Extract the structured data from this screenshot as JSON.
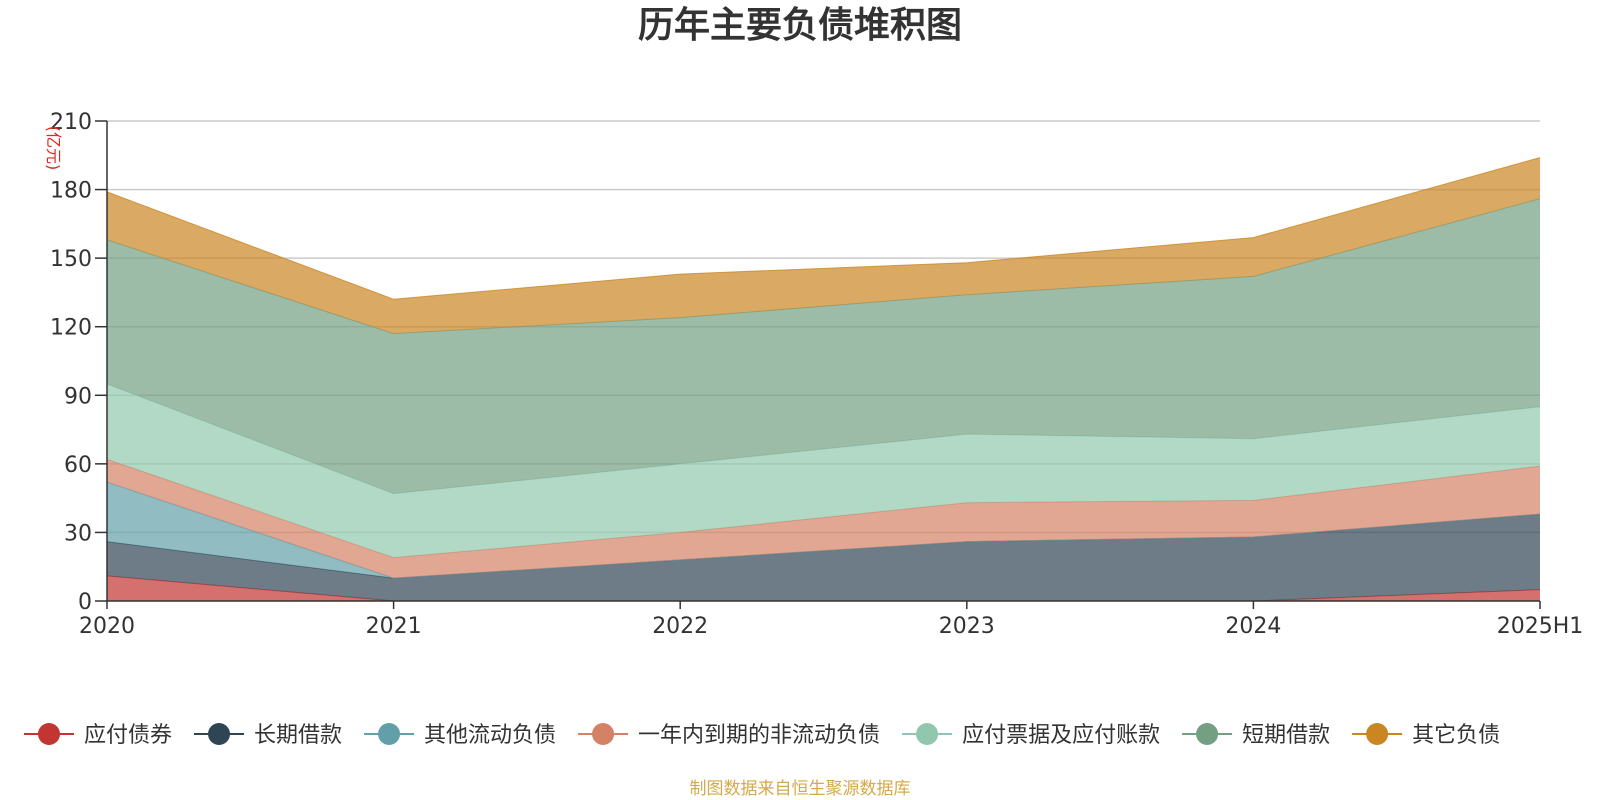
{
  "chart_data": {
    "type": "area",
    "stacked": true,
    "title": "历年主要负债堆积图",
    "unit_label": "(亿元)",
    "categories": [
      "2020",
      "2021",
      "2022",
      "2023",
      "2024",
      "2025H1"
    ],
    "ylim": [
      0,
      210
    ],
    "yticks": [
      0,
      30,
      60,
      90,
      120,
      150,
      180,
      210
    ],
    "grid": true,
    "legend_position": "bottom",
    "series": [
      {
        "name": "应付债券",
        "color": "#c23531",
        "values": [
          11,
          0,
          0,
          0,
          0,
          5
        ]
      },
      {
        "name": "长期借款",
        "color": "#2f4554",
        "values": [
          15,
          10,
          18,
          26,
          28,
          33
        ]
      },
      {
        "name": "其他流动负债",
        "color": "#61a0a8",
        "values": [
          26,
          0,
          0,
          0,
          0,
          0
        ]
      },
      {
        "name": "一年内到期的非流动负债",
        "color": "#d48265",
        "values": [
          10,
          9,
          12,
          17,
          16,
          21
        ]
      },
      {
        "name": "应付票据及应付账款",
        "color": "#91c7ae",
        "values": [
          33,
          28,
          30,
          30,
          27,
          26
        ]
      },
      {
        "name": "短期借款",
        "color": "#749f83",
        "values": [
          63,
          70,
          64,
          61,
          71,
          91
        ]
      },
      {
        "name": "其它负债",
        "color": "#ca8622",
        "values": [
          21,
          15,
          19,
          14,
          17,
          18
        ]
      }
    ]
  },
  "source_note": "制图数据来自恒生聚源数据库"
}
